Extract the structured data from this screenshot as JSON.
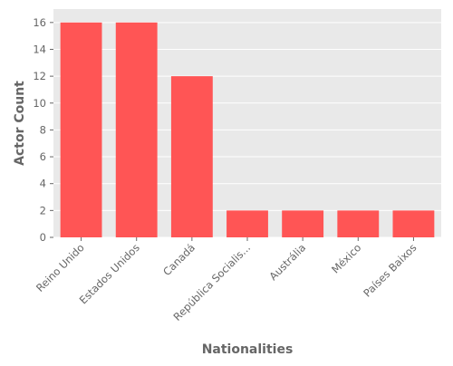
{
  "chart_data": {
    "type": "bar",
    "categories": [
      "Reino Unido",
      "Estados Unidos",
      "Canadá",
      "República Socialis...",
      "Austrália",
      "México",
      "Países Baixos"
    ],
    "values": [
      16,
      16,
      12,
      2,
      2,
      2,
      2
    ],
    "xlabel": "Nationalities",
    "ylabel": "Actor Count",
    "ylim": [
      0,
      17
    ],
    "yticks": [
      0,
      2,
      4,
      6,
      8,
      10,
      12,
      14,
      16
    ],
    "grid": true,
    "bar_color": "#ff5555",
    "background_color": "#e9e9e9",
    "grid_color": "#ffffff"
  }
}
